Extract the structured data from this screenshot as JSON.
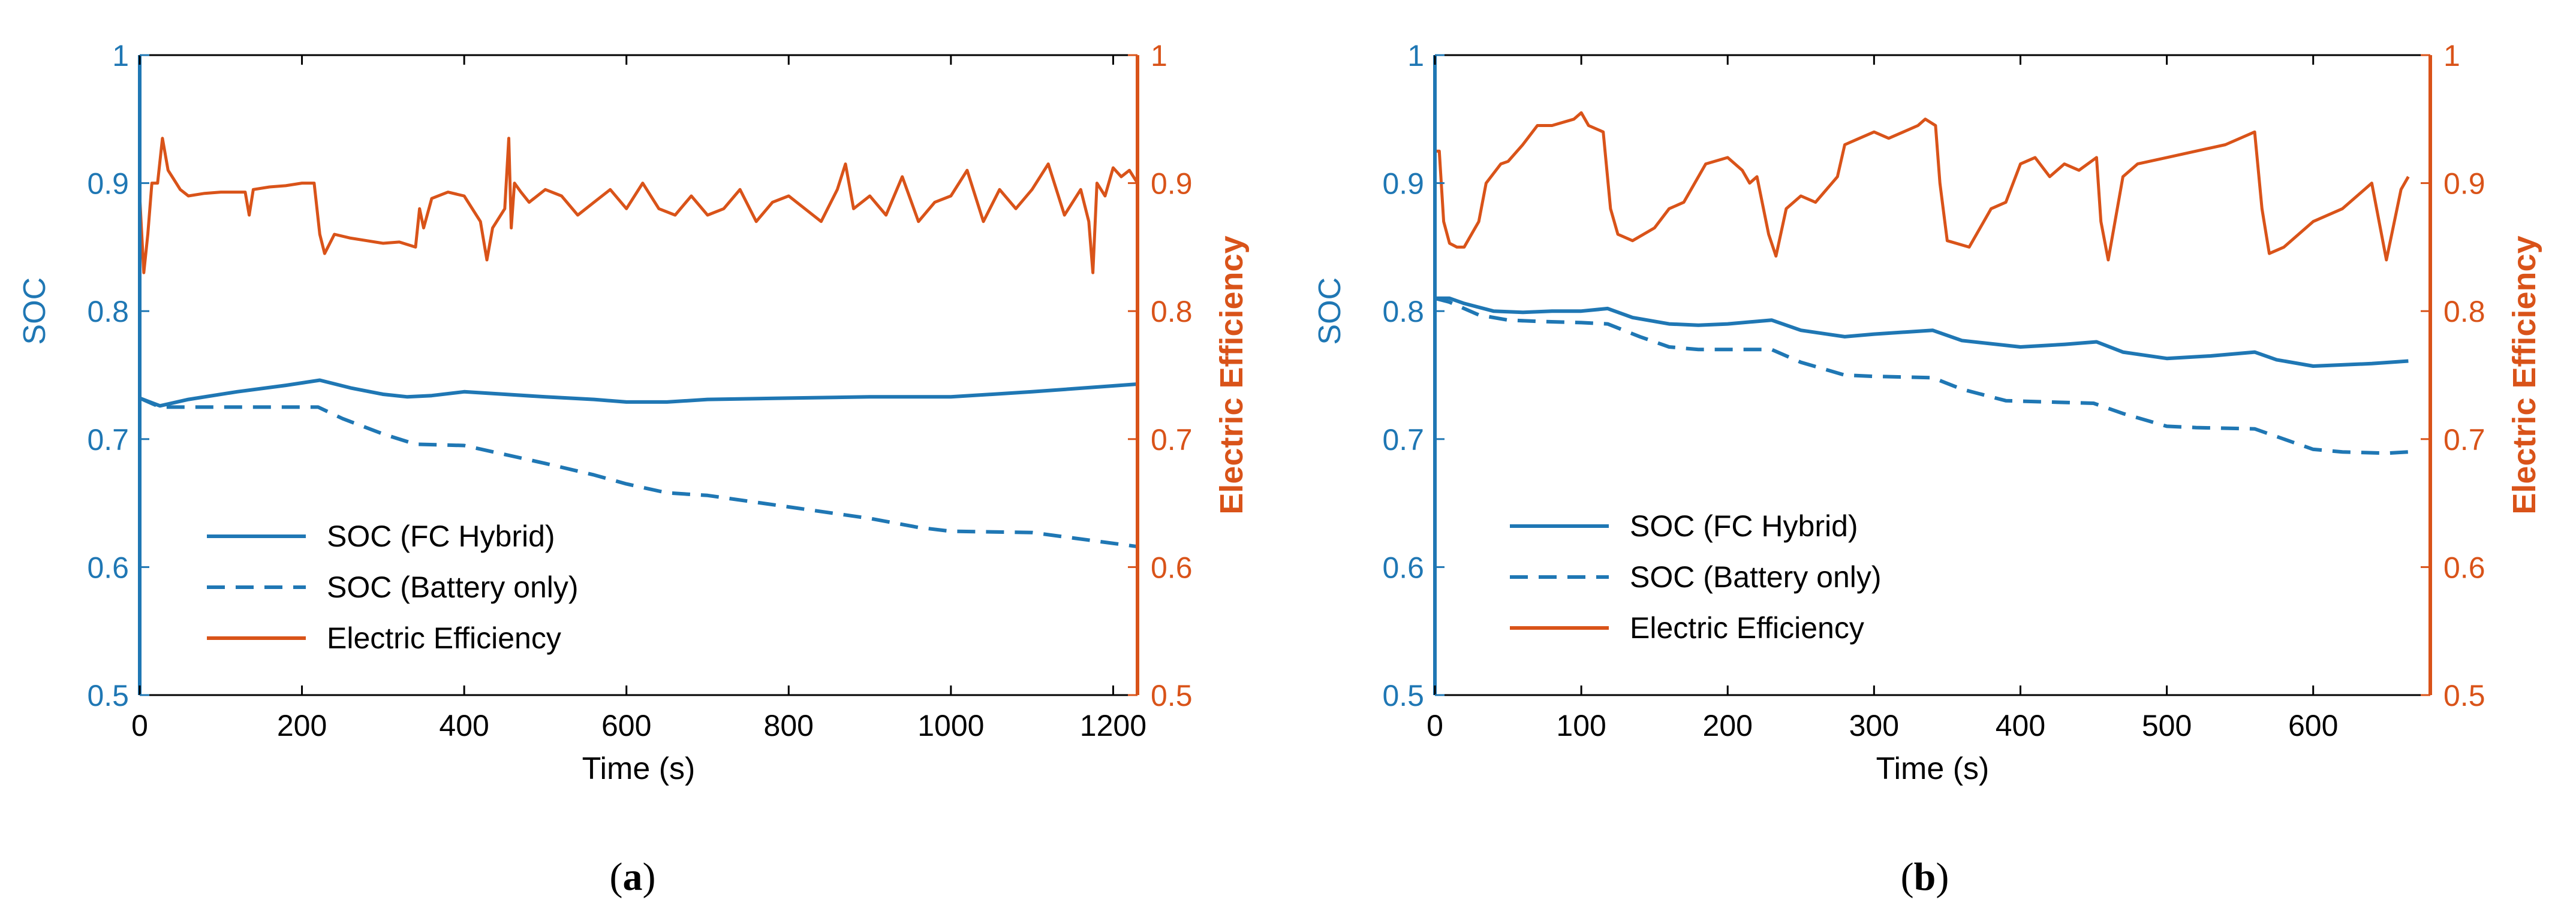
{
  "colors": {
    "soc": "#1f77b4",
    "efficiency": "#d95319",
    "text": "#000000"
  },
  "chart_data": [
    {
      "panel_label": "a",
      "type": "line",
      "xlabel": "Time (s)",
      "ylabel_left": "SOC",
      "ylabel_right": "Electric Efficiency",
      "xlim": [
        0,
        1230
      ],
      "ylim_left": [
        0.5,
        1
      ],
      "ylim_right": [
        0.5,
        1
      ],
      "x_ticks": [
        0,
        200,
        400,
        600,
        800,
        1000,
        1200
      ],
      "y_ticks_left": [
        0.5,
        0.6,
        0.7,
        0.8,
        0.9,
        1
      ],
      "y_ticks_right": [
        0.5,
        0.6,
        0.7,
        0.8,
        0.9,
        1
      ],
      "tick_labels_x": [
        "0",
        "200",
        "400",
        "600",
        "800",
        "1000",
        "1200"
      ],
      "tick_labels_y": [
        "0.5",
        "0.6",
        "0.7",
        "0.8",
        "0.9",
        "1"
      ],
      "legend": [
        "SOC (FC Hybrid)",
        "SOC (Battery only)",
        "Electric Efficiency"
      ],
      "series": [
        {
          "name": "SOC (FC Hybrid)",
          "axis": "left",
          "style": "solid",
          "x": [
            0,
            25,
            60,
            120,
            180,
            222,
            260,
            300,
            330,
            360,
            400,
            450,
            500,
            560,
            600,
            650,
            700,
            800,
            900,
            1000,
            1100,
            1230
          ],
          "y": [
            0.732,
            0.726,
            0.731,
            0.737,
            0.742,
            0.746,
            0.74,
            0.735,
            0.733,
            0.734,
            0.737,
            0.735,
            0.733,
            0.731,
            0.729,
            0.729,
            0.731,
            0.732,
            0.733,
            0.733,
            0.737,
            0.743
          ]
        },
        {
          "name": "SOC (Battery only)",
          "axis": "left",
          "style": "dashed",
          "x": [
            0,
            25,
            60,
            220,
            250,
            300,
            340,
            400,
            450,
            500,
            560,
            600,
            650,
            700,
            800,
            900,
            960,
            1000,
            1100,
            1230
          ],
          "y": [
            0.732,
            0.725,
            0.725,
            0.725,
            0.716,
            0.704,
            0.696,
            0.695,
            0.688,
            0.681,
            0.672,
            0.665,
            0.658,
            0.656,
            0.647,
            0.638,
            0.631,
            0.628,
            0.627,
            0.616
          ]
        },
        {
          "name": "Electric Efficiency",
          "axis": "right",
          "style": "solid",
          "x": [
            0,
            5,
            10,
            15,
            22,
            28,
            35,
            40,
            50,
            60,
            80,
            100,
            130,
            135,
            140,
            160,
            180,
            200,
            215,
            222,
            228,
            240,
            260,
            280,
            300,
            320,
            340,
            345,
            350,
            360,
            380,
            400,
            420,
            428,
            435,
            450,
            455,
            458,
            462,
            470,
            480,
            500,
            520,
            540,
            560,
            580,
            600,
            620,
            640,
            660,
            680,
            700,
            720,
            740,
            760,
            780,
            800,
            820,
            840,
            860,
            870,
            880,
            900,
            920,
            940,
            960,
            980,
            1000,
            1020,
            1040,
            1060,
            1080,
            1100,
            1120,
            1140,
            1160,
            1170,
            1175,
            1180,
            1190,
            1200,
            1210,
            1220,
            1230
          ],
          "y": [
            0.89,
            0.83,
            0.86,
            0.9,
            0.9,
            0.935,
            0.91,
            0.905,
            0.895,
            0.89,
            0.892,
            0.893,
            0.893,
            0.875,
            0.895,
            0.897,
            0.898,
            0.9,
            0.9,
            0.86,
            0.845,
            0.86,
            0.857,
            0.855,
            0.853,
            0.854,
            0.85,
            0.88,
            0.865,
            0.888,
            0.893,
            0.89,
            0.87,
            0.84,
            0.865,
            0.88,
            0.935,
            0.865,
            0.9,
            0.893,
            0.885,
            0.895,
            0.89,
            0.875,
            0.885,
            0.895,
            0.88,
            0.9,
            0.88,
            0.875,
            0.89,
            0.875,
            0.88,
            0.895,
            0.87,
            0.885,
            0.89,
            0.88,
            0.87,
            0.895,
            0.915,
            0.88,
            0.89,
            0.875,
            0.905,
            0.87,
            0.885,
            0.89,
            0.91,
            0.87,
            0.895,
            0.88,
            0.895,
            0.915,
            0.875,
            0.895,
            0.87,
            0.83,
            0.9,
            0.89,
            0.912,
            0.905,
            0.91,
            0.9
          ]
        }
      ]
    },
    {
      "panel_label": "b",
      "type": "line",
      "xlabel": "Time (s)",
      "ylabel_left": "SOC",
      "ylabel_right": "Electric Efficiency",
      "xlim": [
        0,
        680
      ],
      "ylim_left": [
        0.5,
        1
      ],
      "ylim_right": [
        0.5,
        1
      ],
      "x_ticks": [
        0,
        100,
        200,
        300,
        400,
        500,
        600
      ],
      "y_ticks_left": [
        0.5,
        0.6,
        0.7,
        0.8,
        0.9,
        1
      ],
      "y_ticks_right": [
        0.5,
        0.6,
        0.7,
        0.8,
        0.9,
        1
      ],
      "tick_labels_x": [
        "0",
        "100",
        "200",
        "300",
        "400",
        "500",
        "600"
      ],
      "tick_labels_y": [
        "0.5",
        "0.6",
        "0.7",
        "0.8",
        "0.9",
        "1"
      ],
      "legend": [
        "SOC (FC Hybrid)",
        "SOC (Battery only)",
        "Electric Efficiency"
      ],
      "series": [
        {
          "name": "SOC (FC Hybrid)",
          "axis": "left",
          "style": "solid",
          "x": [
            0,
            10,
            20,
            40,
            60,
            80,
            100,
            118,
            135,
            160,
            180,
            200,
            230,
            250,
            280,
            300,
            340,
            360,
            400,
            430,
            452,
            470,
            500,
            530,
            560,
            575,
            600,
            620,
            640,
            665
          ],
          "y": [
            0.81,
            0.81,
            0.806,
            0.8,
            0.799,
            0.8,
            0.8,
            0.802,
            0.795,
            0.79,
            0.789,
            0.79,
            0.793,
            0.785,
            0.78,
            0.782,
            0.785,
            0.777,
            0.772,
            0.774,
            0.776,
            0.768,
            0.763,
            0.765,
            0.768,
            0.762,
            0.757,
            0.758,
            0.759,
            0.761
          ]
        },
        {
          "name": "SOC (Battery only)",
          "axis": "left",
          "style": "dashed",
          "x": [
            0,
            10,
            30,
            50,
            70,
            100,
            118,
            140,
            160,
            180,
            200,
            230,
            250,
            280,
            300,
            340,
            360,
            390,
            420,
            450,
            470,
            500,
            520,
            560,
            580,
            600,
            620,
            650,
            665
          ],
          "y": [
            0.81,
            0.807,
            0.797,
            0.793,
            0.792,
            0.791,
            0.79,
            0.78,
            0.772,
            0.77,
            0.77,
            0.77,
            0.76,
            0.75,
            0.749,
            0.748,
            0.739,
            0.73,
            0.729,
            0.728,
            0.72,
            0.71,
            0.709,
            0.708,
            0.7,
            0.692,
            0.69,
            0.689,
            0.69
          ]
        },
        {
          "name": "Electric Efficiency",
          "axis": "right",
          "style": "solid",
          "x": [
            0,
            3,
            6,
            10,
            15,
            20,
            25,
            30,
            35,
            45,
            50,
            60,
            70,
            80,
            95,
            100,
            105,
            115,
            120,
            125,
            135,
            150,
            160,
            170,
            185,
            200,
            210,
            215,
            220,
            228,
            233,
            240,
            250,
            260,
            275,
            280,
            290,
            300,
            310,
            320,
            330,
            335,
            342,
            345,
            350,
            365,
            380,
            390,
            400,
            410,
            420,
            430,
            440,
            452,
            455,
            460,
            470,
            480,
            500,
            520,
            540,
            560,
            565,
            570,
            580,
            600,
            620,
            640,
            650,
            660,
            665
          ],
          "y": [
            0.925,
            0.925,
            0.87,
            0.853,
            0.85,
            0.85,
            0.86,
            0.87,
            0.9,
            0.915,
            0.917,
            0.93,
            0.945,
            0.945,
            0.95,
            0.955,
            0.945,
            0.94,
            0.88,
            0.86,
            0.855,
            0.865,
            0.88,
            0.885,
            0.915,
            0.92,
            0.91,
            0.9,
            0.905,
            0.86,
            0.843,
            0.88,
            0.89,
            0.885,
            0.905,
            0.93,
            0.935,
            0.94,
            0.935,
            0.94,
            0.945,
            0.95,
            0.945,
            0.9,
            0.855,
            0.85,
            0.88,
            0.885,
            0.915,
            0.92,
            0.905,
            0.915,
            0.91,
            0.92,
            0.87,
            0.84,
            0.905,
            0.915,
            0.92,
            0.925,
            0.93,
            0.94,
            0.88,
            0.845,
            0.85,
            0.87,
            0.88,
            0.9,
            0.84,
            0.895,
            0.905
          ]
        }
      ]
    }
  ]
}
